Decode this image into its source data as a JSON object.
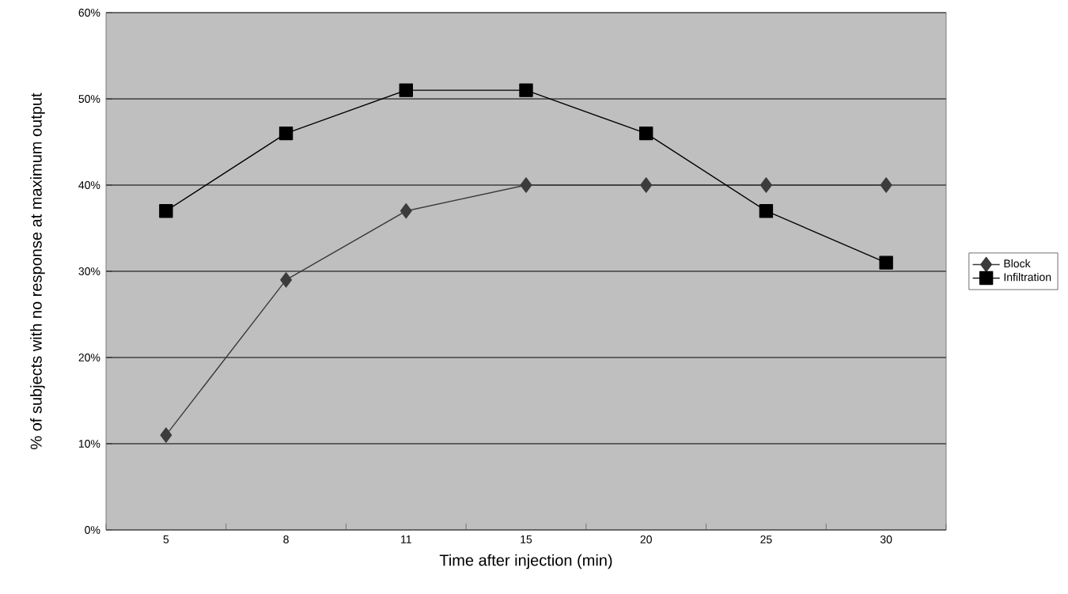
{
  "chart_data": {
    "type": "line",
    "xlabel": "Time after injection (min)",
    "ylabel": "% of subjects with no response at maximum output",
    "categories": [
      "5",
      "8",
      "11",
      "15",
      "20",
      "25",
      "30"
    ],
    "series": [
      {
        "name": "Block",
        "color": "#3c3c3c",
        "marker": "diamond",
        "values": [
          11,
          29,
          37,
          40,
          40,
          40,
          40
        ]
      },
      {
        "name": "Infiltration",
        "color": "#000000",
        "marker": "square",
        "values": [
          37,
          46,
          51,
          51,
          46,
          37,
          31
        ]
      }
    ],
    "ylim": [
      0,
      60
    ],
    "yticks": [
      {
        "value": 0,
        "label": "0%"
      },
      {
        "value": 10,
        "label": "10%"
      },
      {
        "value": 20,
        "label": "20%"
      },
      {
        "value": 30,
        "label": "30%"
      },
      {
        "value": 40,
        "label": "40%"
      },
      {
        "value": 50,
        "label": "50%"
      },
      {
        "value": 60,
        "label": "60%"
      }
    ],
    "grid": "y",
    "legend": "right",
    "line_style": "solid"
  }
}
